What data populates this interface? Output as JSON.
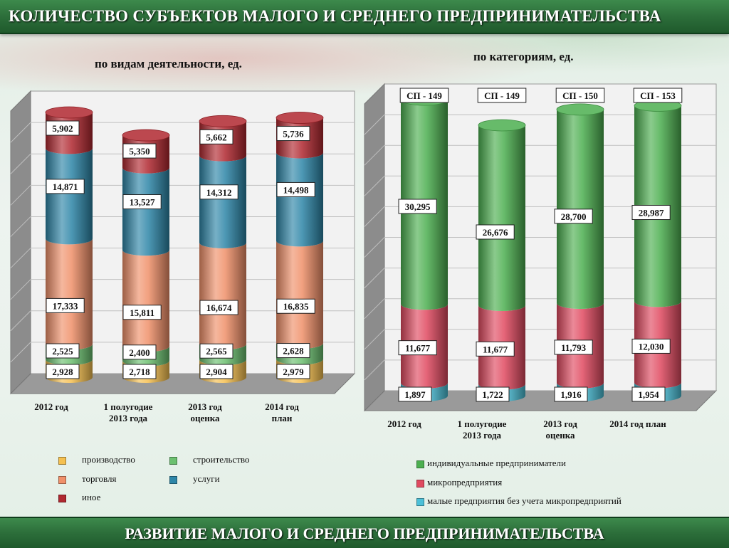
{
  "header": {
    "title": "КОЛИЧЕСТВО СУБЪЕКТОВ МАЛОГО И СРЕДНЕГО ПРЕДПРИНИМАТЕЛЬСТВА"
  },
  "footer": {
    "title": "РАЗВИТИЕ МАЛОГО И СРЕДНЕГО ПРЕДПРИНИМАТЕЛЬСТВА"
  },
  "colors": {
    "production": "#f5c050",
    "construction": "#6cc070",
    "trade": "#f0906a",
    "services": "#2e86a8",
    "other": "#b02830",
    "individual": "#4caf50",
    "micro": "#e04a60",
    "small": "#4cc0d8"
  },
  "chart_data": [
    {
      "type": "bar",
      "stacked": true,
      "subtitle": "по видам деятельности, ед.",
      "categories": [
        "2012 год",
        "1  полугодие 2013 года",
        "2013 год оценка",
        "2014 год план"
      ],
      "category_lines": [
        [
          "2012 год"
        ],
        [
          "1  полугодие",
          "2013 года"
        ],
        [
          "2013 год",
          "оценка"
        ],
        [
          "2014 год",
          "план"
        ]
      ],
      "series": [
        {
          "name": "производство",
          "values": [
            2928,
            2718,
            2904,
            2979
          ],
          "labels": [
            "2,928",
            "2,718",
            "2,904",
            "2,979"
          ]
        },
        {
          "name": "строительство",
          "values": [
            2525,
            2400,
            2565,
            2628
          ],
          "labels": [
            "2,525",
            "2,400",
            "2,565",
            "2,628"
          ]
        },
        {
          "name": "торговля",
          "values": [
            17333,
            15811,
            16674,
            16835
          ],
          "labels": [
            "17,333",
            "15,811",
            "16,674",
            "16,835"
          ]
        },
        {
          "name": "услуги",
          "values": [
            14871,
            13527,
            14312,
            14498
          ],
          "labels": [
            "14,871",
            "13,527",
            "14,312",
            "14,498"
          ]
        },
        {
          "name": "иное",
          "values": [
            5902,
            5350,
            5662,
            5736
          ],
          "labels": [
            "5,902",
            "5,350",
            "5,662",
            "5,736"
          ]
        }
      ],
      "legend_position": "bottom",
      "grid": true
    },
    {
      "type": "bar",
      "stacked": true,
      "subtitle": "по категориям, ед.",
      "categories": [
        "2012 год",
        "1  полугодие 2013 года",
        "2013 год оценка",
        "2014 год план"
      ],
      "category_lines": [
        [
          "2012 год"
        ],
        [
          "1  полугодие",
          "2013 года"
        ],
        [
          "2013 год",
          "оценка"
        ],
        [
          "2014 год план"
        ]
      ],
      "top_labels": [
        "СП - 149",
        "СП - 149",
        "СП - 150",
        "СП - 153"
      ],
      "series": [
        {
          "name": "малые предприятия без учета микропредприятий",
          "values": [
            1897,
            1722,
            1916,
            1954
          ],
          "labels": [
            "1,897",
            "1,722",
            "1,916",
            "1,954"
          ]
        },
        {
          "name": "микропредприятия",
          "values": [
            11677,
            11677,
            11793,
            12030
          ],
          "labels": [
            "11,677",
            "11,677",
            "11,793",
            "12,030"
          ]
        },
        {
          "name": "индивидуальные предприниматели",
          "values": [
            30295,
            26676,
            28700,
            28987
          ],
          "labels": [
            "30,295",
            "26,676",
            "28,700",
            "28,987"
          ]
        }
      ],
      "legend_position": "bottom",
      "grid": true
    }
  ],
  "legend_left": [
    "производство",
    "строительство",
    "торговля",
    "услуги",
    "иное"
  ],
  "legend_right": [
    "индивидуальные предприниматели",
    "микропредприятия",
    "малые предприятия без учета микропредприятий"
  ]
}
